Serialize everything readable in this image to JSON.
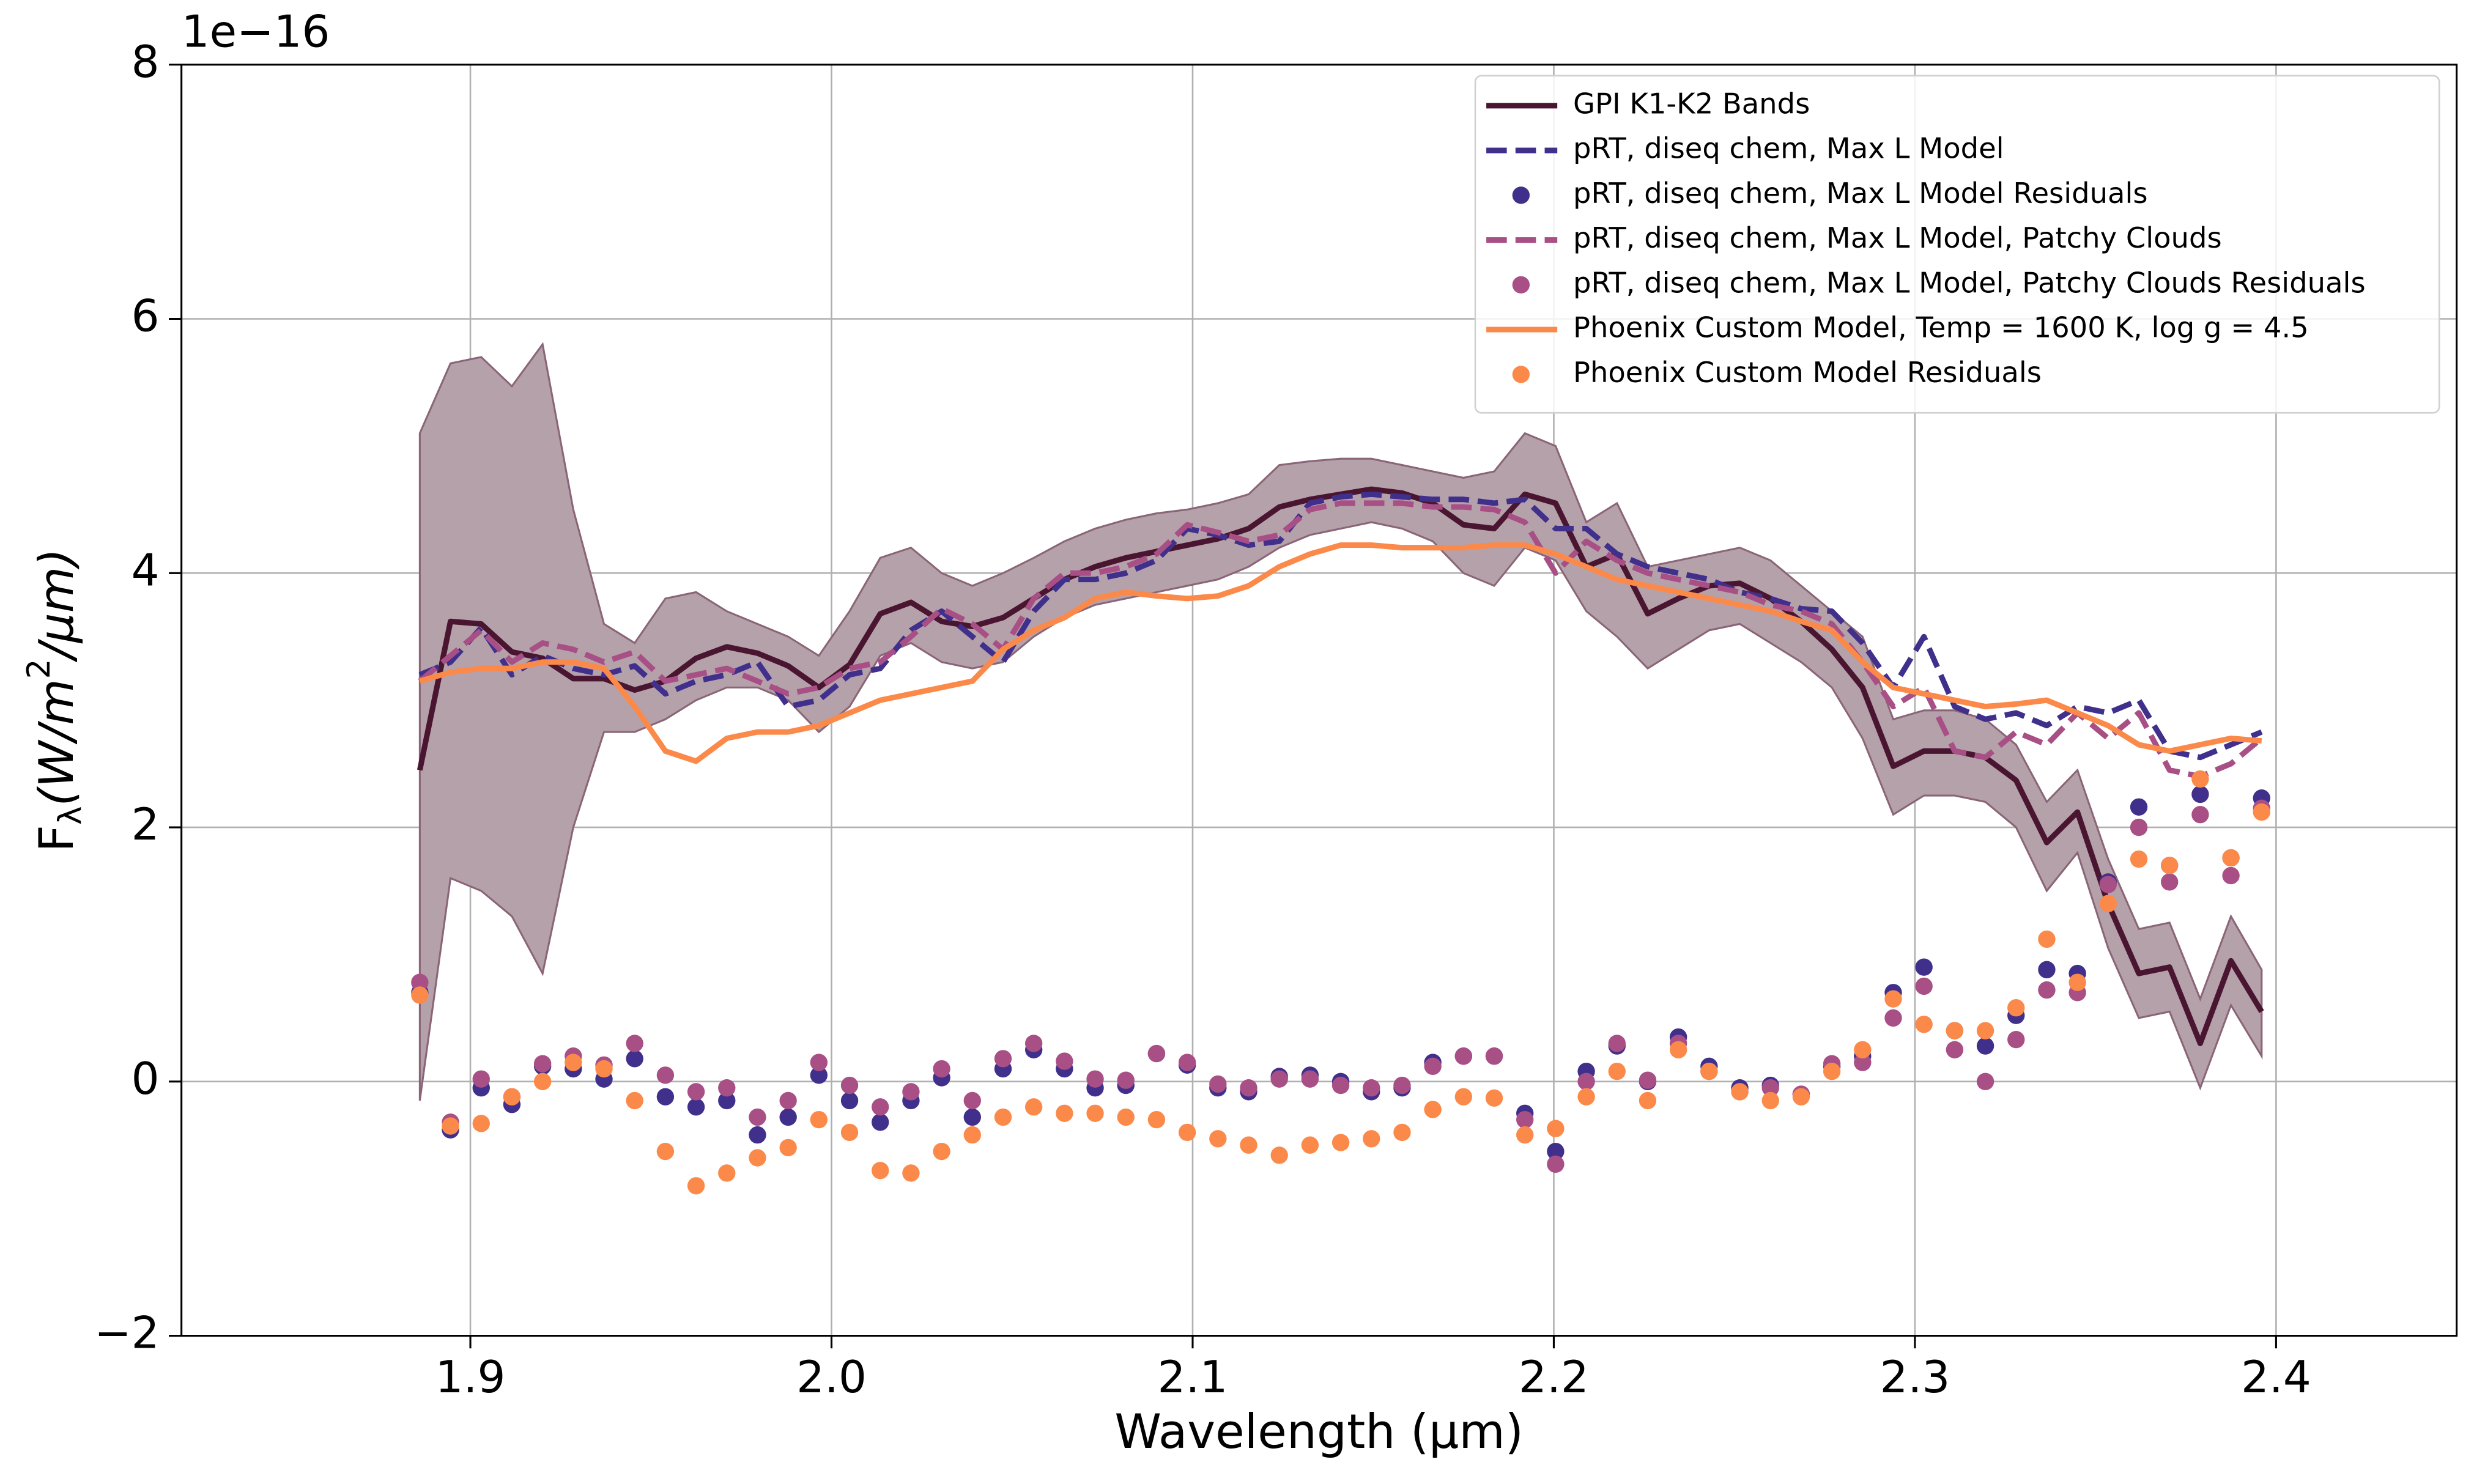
{
  "chart_data": {
    "type": "line",
    "offset_text": "1e−16",
    "xlabel": "Wavelength (μm)",
    "ylabel": {
      "base": "F",
      "sub": "λ",
      "mid": "(W/m",
      "sup": "2",
      "end": "/μm)"
    },
    "xlim": [
      1.82,
      2.45
    ],
    "ylim": [
      -2,
      8
    ],
    "xticks": [
      1.9,
      {
        "value": 2.0,
        "label": "2.0"
      },
      2.1,
      2.2,
      2.3,
      2.4
    ],
    "yticks": [
      {
        "value": -2,
        "label": "−2"
      },
      0,
      2,
      4,
      6,
      8
    ],
    "grid": true,
    "legend": "upper right",
    "x": [
      1.886,
      1.8945,
      1.903,
      1.9115,
      1.92,
      1.9285,
      1.937,
      1.9455,
      1.954,
      1.9625,
      1.971,
      1.9795,
      1.988,
      1.9965,
      2.005,
      2.0135,
      2.022,
      2.0305,
      2.039,
      2.0475,
      2.056,
      2.0645,
      2.073,
      2.0815,
      2.09,
      2.0985,
      2.107,
      2.1155,
      2.124,
      2.1325,
      2.141,
      2.1495,
      2.158,
      2.1665,
      2.175,
      2.1835,
      2.192,
      2.2005,
      2.209,
      2.2175,
      2.226,
      2.2345,
      2.243,
      2.2515,
      2.26,
      2.2685,
      2.277,
      2.2855,
      2.294,
      2.3025,
      2.311,
      2.3195,
      2.328,
      2.3365,
      2.345,
      2.3535,
      2.362,
      2.3705,
      2.379,
      2.3875,
      2.396
    ],
    "band": {
      "color": "#b5a1aa",
      "edge": "#8a6577",
      "upper": [
        5.1,
        5.65,
        5.7,
        5.47,
        5.8,
        4.5,
        3.6,
        3.45,
        3.8,
        3.85,
        3.7,
        3.6,
        3.5,
        3.35,
        3.7,
        4.12,
        4.2,
        4.0,
        3.9,
        4.0,
        4.12,
        4.25,
        4.35,
        4.42,
        4.47,
        4.5,
        4.55,
        4.62,
        4.85,
        4.88,
        4.9,
        4.9,
        4.85,
        4.8,
        4.75,
        4.8,
        5.1,
        5.0,
        4.4,
        4.55,
        4.05,
        4.1,
        4.15,
        4.2,
        4.1,
        3.9,
        3.7,
        3.5,
        2.85,
        2.92,
        2.92,
        2.85,
        2.65,
        2.2,
        2.45,
        1.75,
        1.2,
        1.25,
        0.65,
        1.3,
        0.88
      ],
      "lower": [
        -0.15,
        1.6,
        1.5,
        1.3,
        0.85,
        2.0,
        2.75,
        2.75,
        2.85,
        3.0,
        3.1,
        3.1,
        3.0,
        2.75,
        2.95,
        3.35,
        3.45,
        3.3,
        3.25,
        3.3,
        3.5,
        3.65,
        3.75,
        3.8,
        3.85,
        3.9,
        3.95,
        4.05,
        4.2,
        4.3,
        4.35,
        4.4,
        4.35,
        4.25,
        4.0,
        3.9,
        4.2,
        4.1,
        3.7,
        3.5,
        3.25,
        3.4,
        3.55,
        3.6,
        3.45,
        3.3,
        3.1,
        2.7,
        2.1,
        2.25,
        2.25,
        2.2,
        2.0,
        1.5,
        1.8,
        1.05,
        0.5,
        0.55,
        -0.05,
        0.6,
        0.2
      ]
    },
    "series": [
      {
        "name": "GPI K1-K2 Bands",
        "color": "#4a1530",
        "style": "solid",
        "values": [
          2.45,
          3.62,
          3.6,
          3.38,
          3.33,
          3.17,
          3.17,
          3.08,
          3.15,
          3.33,
          3.42,
          3.37,
          3.27,
          3.1,
          3.28,
          3.68,
          3.77,
          3.62,
          3.58,
          3.65,
          3.8,
          3.95,
          4.05,
          4.12,
          4.17,
          4.22,
          4.27,
          4.35,
          4.52,
          4.58,
          4.62,
          4.66,
          4.63,
          4.55,
          4.38,
          4.35,
          4.62,
          4.55,
          4.05,
          4.15,
          3.68,
          3.8,
          3.9,
          3.92,
          3.8,
          3.62,
          3.4,
          3.1,
          2.48,
          2.6,
          2.6,
          2.55,
          2.37,
          1.88,
          2.12,
          1.4,
          0.85,
          0.9,
          0.3,
          0.95,
          0.55
        ]
      },
      {
        "name": "pRT, diseq chem, Max L Model",
        "color": "#40308c",
        "style": "dashed",
        "values": [
          3.2,
          3.3,
          3.57,
          3.2,
          3.35,
          3.25,
          3.2,
          3.27,
          3.05,
          3.15,
          3.2,
          3.3,
          2.95,
          3.0,
          3.2,
          3.25,
          3.55,
          3.7,
          3.5,
          3.3,
          3.7,
          3.95,
          3.95,
          4.0,
          4.1,
          4.35,
          4.3,
          4.22,
          4.25,
          4.55,
          4.6,
          4.62,
          4.6,
          4.58,
          4.58,
          4.55,
          4.58,
          4.35,
          4.35,
          4.15,
          4.05,
          4.0,
          3.95,
          3.85,
          3.8,
          3.72,
          3.7,
          3.45,
          3.1,
          3.5,
          2.95,
          2.85,
          2.9,
          2.8,
          2.95,
          2.9,
          3.0,
          2.6,
          2.55,
          2.65,
          2.75
        ]
      },
      {
        "name": "pRT, diseq chem, Max L Model Residuals",
        "color": "#40308c",
        "style": "scatter",
        "values": [
          0.7,
          -0.38,
          -0.05,
          -0.18,
          0.12,
          0.1,
          0.02,
          0.18,
          -0.12,
          -0.2,
          -0.15,
          -0.42,
          -0.28,
          0.05,
          -0.15,
          -0.32,
          -0.15,
          0.03,
          -0.28,
          0.1,
          0.25,
          0.1,
          -0.05,
          -0.03,
          0.22,
          0.13,
          -0.05,
          -0.08,
          0.04,
          0.05,
          0.0,
          -0.08,
          -0.05,
          0.15,
          0.2,
          0.2,
          -0.25,
          -0.55,
          0.08,
          0.28,
          0.0,
          0.35,
          0.12,
          -0.05,
          -0.03,
          -0.1,
          0.12,
          0.2,
          0.7,
          0.9,
          0.4,
          0.28,
          0.52,
          0.88,
          0.85,
          1.57,
          2.16,
          1.7,
          2.26,
          1.76,
          2.23
        ]
      },
      {
        "name": "pRT, diseq chem, Max L Model, Patchy Clouds",
        "color": "#a84f86",
        "style": "dashed",
        "values": [
          3.15,
          3.35,
          3.55,
          3.3,
          3.45,
          3.4,
          3.3,
          3.38,
          3.15,
          3.2,
          3.25,
          3.15,
          3.05,
          3.1,
          3.25,
          3.3,
          3.5,
          3.72,
          3.6,
          3.4,
          3.8,
          4.0,
          4.0,
          4.05,
          4.15,
          4.38,
          4.32,
          4.25,
          4.3,
          4.5,
          4.55,
          4.55,
          4.55,
          4.52,
          4.52,
          4.5,
          4.4,
          4.0,
          4.25,
          4.1,
          4.0,
          3.95,
          3.9,
          3.85,
          3.75,
          3.7,
          3.6,
          3.3,
          2.95,
          3.1,
          2.6,
          2.55,
          2.75,
          2.65,
          2.9,
          2.7,
          2.9,
          2.45,
          2.4,
          2.5,
          2.7
        ]
      },
      {
        "name": "pRT, diseq chem, Max L Model, Patchy Clouds Residuals",
        "color": "#a84f86",
        "style": "scatter",
        "values": [
          0.78,
          -0.32,
          0.02,
          -0.12,
          0.14,
          0.2,
          0.13,
          0.3,
          0.05,
          -0.08,
          -0.05,
          -0.28,
          -0.15,
          0.15,
          -0.03,
          -0.2,
          -0.08,
          0.1,
          -0.15,
          0.18,
          0.3,
          0.16,
          0.02,
          0.01,
          0.22,
          0.15,
          -0.02,
          -0.05,
          0.02,
          0.02,
          -0.03,
          -0.05,
          -0.03,
          0.12,
          0.2,
          0.2,
          -0.3,
          -0.65,
          0.0,
          0.3,
          0.01,
          0.3,
          0.08,
          -0.08,
          -0.05,
          -0.1,
          0.14,
          0.15,
          0.5,
          0.75,
          0.25,
          0.0,
          0.33,
          0.72,
          0.7,
          1.55,
          2.0,
          1.57,
          2.1,
          1.62,
          2.15
        ]
      },
      {
        "name": "Phoenix Custom Model, Temp = 1600 K, log g = 4.5",
        "color": "#fb8a4a",
        "style": "solid",
        "values": [
          3.15,
          3.22,
          3.25,
          3.25,
          3.3,
          3.3,
          3.25,
          2.95,
          2.6,
          2.52,
          2.7,
          2.75,
          2.75,
          2.8,
          2.9,
          3.0,
          3.05,
          3.1,
          3.15,
          3.4,
          3.55,
          3.65,
          3.8,
          3.85,
          3.82,
          3.8,
          3.82,
          3.9,
          4.05,
          4.15,
          4.22,
          4.22,
          4.2,
          4.2,
          4.2,
          4.22,
          4.22,
          4.15,
          4.05,
          3.95,
          3.9,
          3.85,
          3.8,
          3.75,
          3.7,
          3.62,
          3.55,
          3.3,
          3.1,
          3.05,
          3.0,
          2.95,
          2.97,
          3.0,
          2.9,
          2.8,
          2.65,
          2.6,
          2.65,
          2.7,
          2.68
        ]
      },
      {
        "name": "Phoenix Custom Model Residuals",
        "color": "#fb8a4a",
        "style": "scatter",
        "values": [
          0.68,
          -0.35,
          -0.33,
          -0.12,
          0.0,
          0.15,
          0.1,
          -0.15,
          -0.55,
          -0.82,
          -0.72,
          -0.6,
          -0.52,
          -0.3,
          -0.4,
          -0.7,
          -0.72,
          -0.55,
          -0.42,
          -0.28,
          -0.2,
          -0.25,
          -0.25,
          -0.28,
          -0.3,
          -0.4,
          -0.45,
          -0.5,
          -0.58,
          -0.5,
          -0.48,
          -0.45,
          -0.4,
          -0.22,
          -0.12,
          -0.13,
          -0.42,
          -0.37,
          -0.12,
          0.08,
          -0.15,
          0.25,
          0.08,
          -0.08,
          -0.15,
          -0.12,
          0.08,
          0.25,
          0.65,
          0.45,
          0.4,
          0.4,
          0.58,
          1.12,
          0.78,
          1.4,
          1.75,
          1.7,
          2.38,
          1.76,
          2.12
        ]
      }
    ]
  }
}
